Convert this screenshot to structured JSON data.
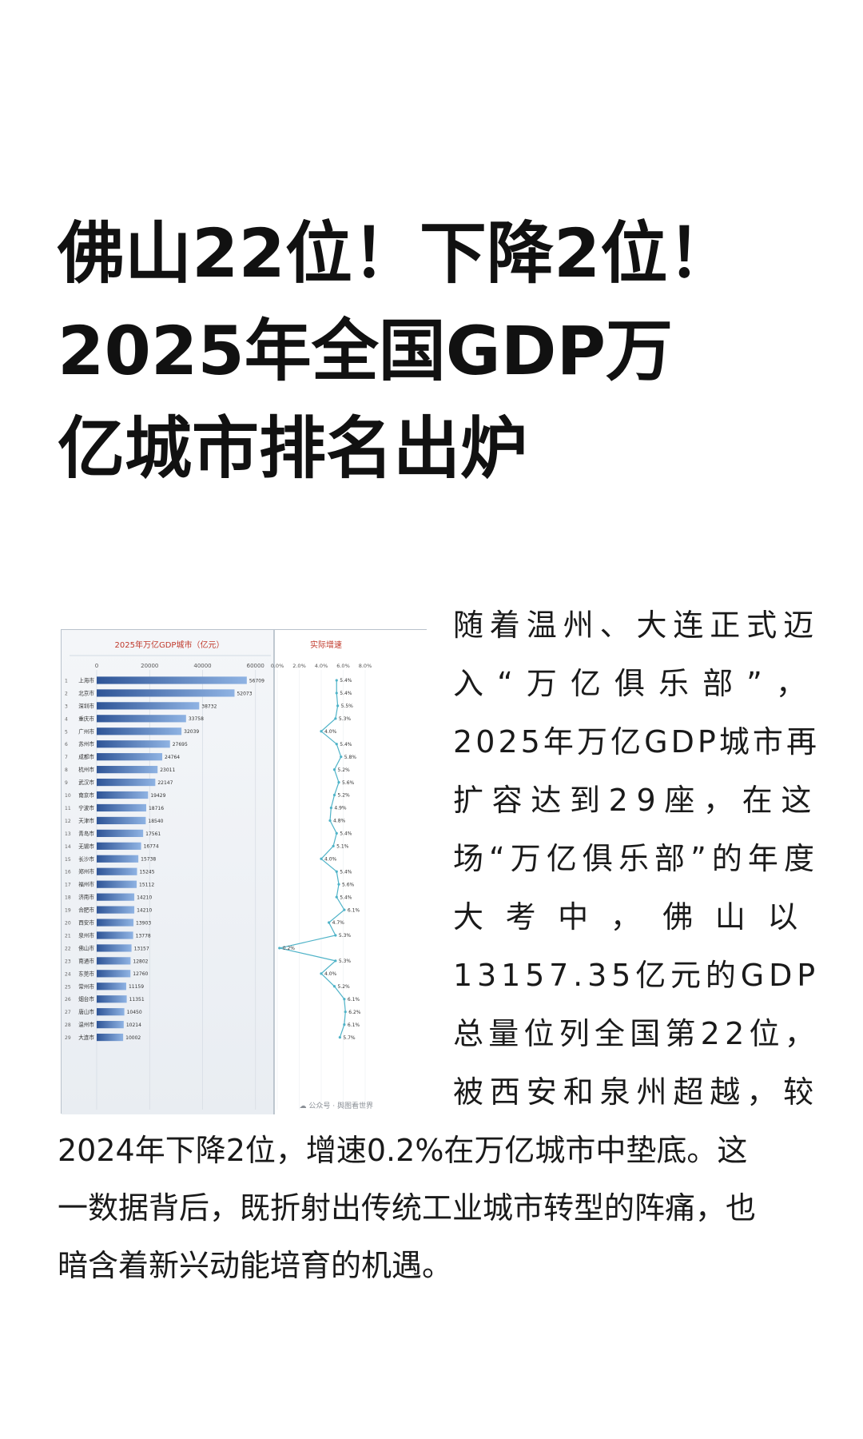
{
  "article": {
    "title_lines": [
      "佛山22位！下降2位！",
      "2025年全国GDP万",
      "亿城市排名出炉"
    ],
    "side_lines": [
      "随着温州、大连正式迈",
      "入“万亿俱乐部”，",
      "2025年万亿GDP城市再",
      "扩容达到29座，在这",
      "场“万亿俱乐部”的年度",
      "大考中，佛山以",
      "13157.35亿元的GDP",
      "总量位列全国第22位，",
      "被西安和泉州超越，较"
    ],
    "full_lines": [
      "2024年下降2位，增速0.2%在万亿城市中垫底。这",
      "一数据背后，既折射出传统工业城市转型的阵痛，也",
      "暗含着新兴动能培育的机遇。"
    ]
  },
  "chart_data": {
    "type": "bar",
    "title": "2025年万亿GDP城市（亿元）",
    "growth_title": "实际增速",
    "x_ticks": [
      0,
      20000,
      40000,
      60000
    ],
    "x_tick_labels": [
      "0",
      "20000",
      "40000",
      "60000"
    ],
    "xlim": [
      0,
      64000
    ],
    "growth_ticks": [
      "0.0%",
      "2.0%",
      "4.0%",
      "6.0%",
      "8.0%"
    ],
    "growth_lim": [
      0,
      8.0
    ],
    "ranks": [
      "1",
      "2",
      "3",
      "4",
      "5",
      "6",
      "7",
      "8",
      "9",
      "10",
      "11",
      "12",
      "13",
      "14",
      "15",
      "16",
      "17",
      "18",
      "19",
      "20",
      "21",
      "22",
      "23",
      "24",
      "25",
      "26",
      "27",
      "28",
      "29"
    ],
    "categories": [
      "上海市",
      "北京市",
      "深圳市",
      "重庆市",
      "广州市",
      "苏州市",
      "成都市",
      "杭州市",
      "武汉市",
      "南京市",
      "宁波市",
      "天津市",
      "青岛市",
      "无锡市",
      "长沙市",
      "郑州市",
      "福州市",
      "济南市",
      "合肥市",
      "西安市",
      "泉州市",
      "佛山市",
      "南通市",
      "东莞市",
      "常州市",
      "烟台市",
      "唐山市",
      "温州市",
      "大连市"
    ],
    "values": [
      56709,
      52073,
      38732,
      33758,
      32039,
      27695,
      24764,
      23011,
      22147,
      19429,
      18716,
      18540,
      17561,
      16774,
      15738,
      15245,
      15112,
      14210,
      14210,
      13903,
      13778,
      13157,
      12802,
      12760,
      11159,
      11351,
      10450,
      10214,
      10002
    ],
    "value_labels": [
      "56709",
      "52073",
      "38732",
      "33758",
      "32039",
      "27695",
      "24764",
      "23011",
      "22147",
      "19429",
      "18716",
      "18540",
      "17561",
      "16774",
      "15738",
      "15245",
      "15112",
      "14210",
      "14210",
      "13903",
      "13778",
      "13157",
      "12802",
      "12760",
      "11159",
      "11351",
      "10450",
      "10214",
      "10002"
    ],
    "growth": [
      5.4,
      5.4,
      5.5,
      5.3,
      4.0,
      5.4,
      5.8,
      5.2,
      5.6,
      5.2,
      4.9,
      4.8,
      5.4,
      5.1,
      4.0,
      5.4,
      5.6,
      5.4,
      6.1,
      4.7,
      5.3,
      0.2,
      5.3,
      4.0,
      5.2,
      6.1,
      6.2,
      6.1,
      5.7
    ],
    "growth_labels": [
      "5.4%",
      "5.4%",
      "5.5%",
      "5.3%",
      "4.0%",
      "5.4%",
      "5.8%",
      "5.2%",
      "5.6%",
      "5.2%",
      "4.9%",
      "4.8%",
      "5.4%",
      "5.1%",
      "4.0%",
      "5.4%",
      "5.6%",
      "5.4%",
      "6.1%",
      "4.7%",
      "5.3%",
      "0.2%",
      "5.3%",
      "4.0%",
      "5.2%",
      "6.1%",
      "6.2%",
      "6.1%",
      "5.7%"
    ],
    "watermark": "公众号 · 舆图看世界",
    "colors": {
      "bar_dark": "#2f5597",
      "bar_light": "#8fb3e3",
      "line": "#4fb3c8",
      "title_red": "#c0392b",
      "panel_bg": "#eef2f7"
    }
  }
}
